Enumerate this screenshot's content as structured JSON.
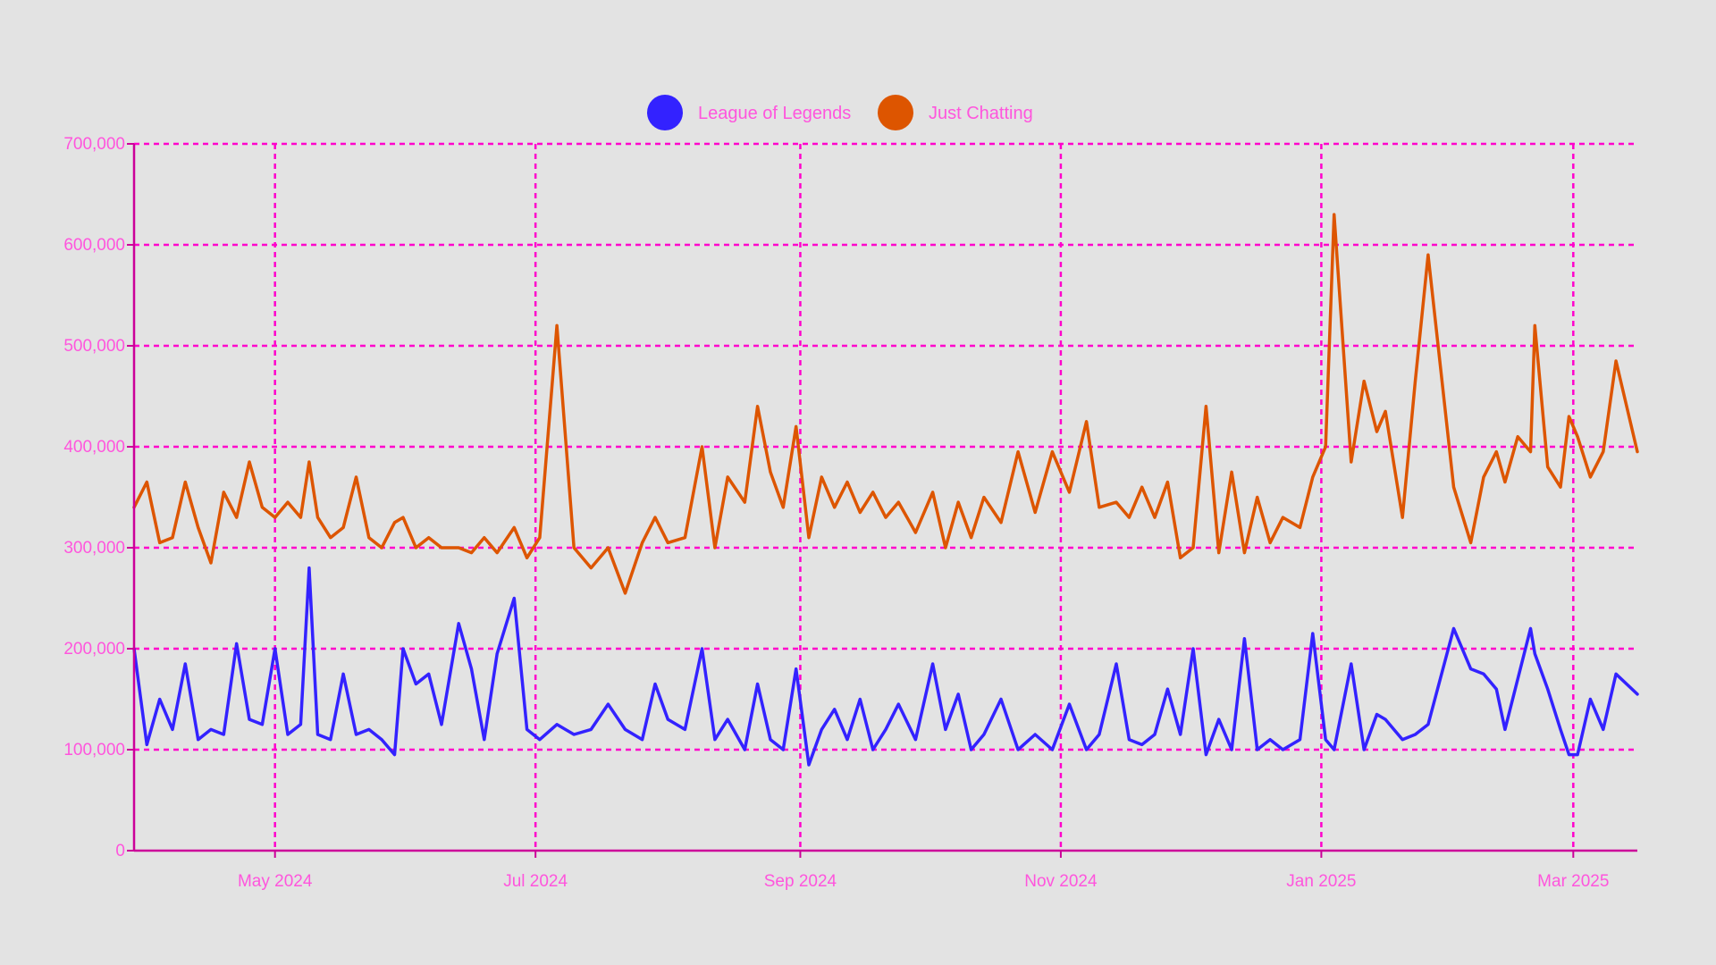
{
  "chart_data": {
    "type": "line",
    "title": "",
    "xlabel": "",
    "ylabel": "",
    "x_range": [
      "2024-03-29",
      "2025-03-16"
    ],
    "ylim": [
      0,
      700000
    ],
    "y_ticks": [
      0,
      100000,
      200000,
      300000,
      400000,
      500000,
      600000,
      700000
    ],
    "y_tick_labels": [
      "0",
      "100,000",
      "200,000",
      "300,000",
      "400,000",
      "500,000",
      "600,000",
      "700,000"
    ],
    "x_ticks": [
      "2024-05-01",
      "2024-07-01",
      "2024-09-01",
      "2024-11-01",
      "2025-01-01",
      "2025-03-01"
    ],
    "x_tick_labels": [
      "May 2024",
      "Jul 2024",
      "Sep 2024",
      "Nov 2024",
      "Jan 2025",
      "Mar 2025"
    ],
    "grid": true,
    "legend_position": "top-center",
    "colors": {
      "axis": "#cc0099",
      "grid": "#ff00cc",
      "text": "#ff55dd",
      "background": "#e3e3e3"
    },
    "series": [
      {
        "name": "League of Legends",
        "color": "#3322ff",
        "points": [
          [
            "2024-03-29",
            200000
          ],
          [
            "2024-04-01",
            105000
          ],
          [
            "2024-04-04",
            150000
          ],
          [
            "2024-04-07",
            120000
          ],
          [
            "2024-04-10",
            185000
          ],
          [
            "2024-04-13",
            110000
          ],
          [
            "2024-04-16",
            120000
          ],
          [
            "2024-04-19",
            115000
          ],
          [
            "2024-04-22",
            205000
          ],
          [
            "2024-04-25",
            130000
          ],
          [
            "2024-04-28",
            125000
          ],
          [
            "2024-05-01",
            200000
          ],
          [
            "2024-05-04",
            115000
          ],
          [
            "2024-05-07",
            125000
          ],
          [
            "2024-05-09",
            280000
          ],
          [
            "2024-05-11",
            115000
          ],
          [
            "2024-05-14",
            110000
          ],
          [
            "2024-05-17",
            175000
          ],
          [
            "2024-05-20",
            115000
          ],
          [
            "2024-05-23",
            120000
          ],
          [
            "2024-05-26",
            110000
          ],
          [
            "2024-05-29",
            95000
          ],
          [
            "2024-05-31",
            200000
          ],
          [
            "2024-06-03",
            165000
          ],
          [
            "2024-06-06",
            175000
          ],
          [
            "2024-06-09",
            125000
          ],
          [
            "2024-06-13",
            225000
          ],
          [
            "2024-06-16",
            180000
          ],
          [
            "2024-06-19",
            110000
          ],
          [
            "2024-06-22",
            195000
          ],
          [
            "2024-06-26",
            250000
          ],
          [
            "2024-06-29",
            120000
          ],
          [
            "2024-07-02",
            110000
          ],
          [
            "2024-07-06",
            125000
          ],
          [
            "2024-07-10",
            115000
          ],
          [
            "2024-07-14",
            120000
          ],
          [
            "2024-07-18",
            145000
          ],
          [
            "2024-07-22",
            120000
          ],
          [
            "2024-07-26",
            110000
          ],
          [
            "2024-07-29",
            165000
          ],
          [
            "2024-08-01",
            130000
          ],
          [
            "2024-08-05",
            120000
          ],
          [
            "2024-08-09",
            200000
          ],
          [
            "2024-08-12",
            110000
          ],
          [
            "2024-08-15",
            130000
          ],
          [
            "2024-08-19",
            100000
          ],
          [
            "2024-08-22",
            165000
          ],
          [
            "2024-08-25",
            110000
          ],
          [
            "2024-08-28",
            100000
          ],
          [
            "2024-08-31",
            180000
          ],
          [
            "2024-09-03",
            85000
          ],
          [
            "2024-09-06",
            120000
          ],
          [
            "2024-09-09",
            140000
          ],
          [
            "2024-09-12",
            110000
          ],
          [
            "2024-09-15",
            150000
          ],
          [
            "2024-09-18",
            100000
          ],
          [
            "2024-09-21",
            120000
          ],
          [
            "2024-09-24",
            145000
          ],
          [
            "2024-09-28",
            110000
          ],
          [
            "2024-10-02",
            185000
          ],
          [
            "2024-10-05",
            120000
          ],
          [
            "2024-10-08",
            155000
          ],
          [
            "2024-10-11",
            100000
          ],
          [
            "2024-10-14",
            115000
          ],
          [
            "2024-10-18",
            150000
          ],
          [
            "2024-10-22",
            100000
          ],
          [
            "2024-10-26",
            115000
          ],
          [
            "2024-10-30",
            100000
          ],
          [
            "2024-11-03",
            145000
          ],
          [
            "2024-11-07",
            100000
          ],
          [
            "2024-11-10",
            115000
          ],
          [
            "2024-11-14",
            185000
          ],
          [
            "2024-11-17",
            110000
          ],
          [
            "2024-11-20",
            105000
          ],
          [
            "2024-11-23",
            115000
          ],
          [
            "2024-11-26",
            160000
          ],
          [
            "2024-11-29",
            115000
          ],
          [
            "2024-12-02",
            200000
          ],
          [
            "2024-12-05",
            95000
          ],
          [
            "2024-12-08",
            130000
          ],
          [
            "2024-12-11",
            100000
          ],
          [
            "2024-12-14",
            210000
          ],
          [
            "2024-12-17",
            100000
          ],
          [
            "2024-12-20",
            110000
          ],
          [
            "2024-12-23",
            100000
          ],
          [
            "2024-12-27",
            110000
          ],
          [
            "2024-12-30",
            215000
          ],
          [
            "2025-01-02",
            110000
          ],
          [
            "2025-01-04",
            100000
          ],
          [
            "2025-01-08",
            185000
          ],
          [
            "2025-01-11",
            100000
          ],
          [
            "2025-01-14",
            135000
          ],
          [
            "2025-01-16",
            130000
          ],
          [
            "2025-01-20",
            110000
          ],
          [
            "2025-01-23",
            115000
          ],
          [
            "2025-01-26",
            125000
          ],
          [
            "2025-02-01",
            220000
          ],
          [
            "2025-02-05",
            180000
          ],
          [
            "2025-02-08",
            175000
          ],
          [
            "2025-02-11",
            160000
          ],
          [
            "2025-02-13",
            120000
          ],
          [
            "2025-02-16",
            170000
          ],
          [
            "2025-02-19",
            220000
          ],
          [
            "2025-02-20",
            195000
          ],
          [
            "2025-02-23",
            160000
          ],
          [
            "2025-02-26",
            120000
          ],
          [
            "2025-02-28",
            95000
          ],
          [
            "2025-03-02",
            95000
          ],
          [
            "2025-03-05",
            150000
          ],
          [
            "2025-03-08",
            120000
          ],
          [
            "2025-03-11",
            175000
          ],
          [
            "2025-03-16",
            155000
          ]
        ]
      },
      {
        "name": "Just Chatting",
        "color": "#dd5500",
        "points": [
          [
            "2024-03-29",
            340000
          ],
          [
            "2024-04-01",
            365000
          ],
          [
            "2024-04-04",
            305000
          ],
          [
            "2024-04-07",
            310000
          ],
          [
            "2024-04-10",
            365000
          ],
          [
            "2024-04-13",
            320000
          ],
          [
            "2024-04-16",
            285000
          ],
          [
            "2024-04-19",
            355000
          ],
          [
            "2024-04-22",
            330000
          ],
          [
            "2024-04-25",
            385000
          ],
          [
            "2024-04-28",
            340000
          ],
          [
            "2024-05-01",
            330000
          ],
          [
            "2024-05-04",
            345000
          ],
          [
            "2024-05-07",
            330000
          ],
          [
            "2024-05-09",
            385000
          ],
          [
            "2024-05-11",
            330000
          ],
          [
            "2024-05-14",
            310000
          ],
          [
            "2024-05-17",
            320000
          ],
          [
            "2024-05-20",
            370000
          ],
          [
            "2024-05-23",
            310000
          ],
          [
            "2024-05-26",
            300000
          ],
          [
            "2024-05-29",
            325000
          ],
          [
            "2024-05-31",
            330000
          ],
          [
            "2024-06-03",
            300000
          ],
          [
            "2024-06-06",
            310000
          ],
          [
            "2024-06-09",
            300000
          ],
          [
            "2024-06-13",
            300000
          ],
          [
            "2024-06-16",
            295000
          ],
          [
            "2024-06-19",
            310000
          ],
          [
            "2024-06-22",
            295000
          ],
          [
            "2024-06-26",
            320000
          ],
          [
            "2024-06-29",
            290000
          ],
          [
            "2024-07-02",
            310000
          ],
          [
            "2024-07-06",
            520000
          ],
          [
            "2024-07-10",
            300000
          ],
          [
            "2024-07-14",
            280000
          ],
          [
            "2024-07-18",
            300000
          ],
          [
            "2024-07-22",
            255000
          ],
          [
            "2024-07-26",
            305000
          ],
          [
            "2024-07-29",
            330000
          ],
          [
            "2024-08-01",
            305000
          ],
          [
            "2024-08-05",
            310000
          ],
          [
            "2024-08-09",
            400000
          ],
          [
            "2024-08-12",
            300000
          ],
          [
            "2024-08-15",
            370000
          ],
          [
            "2024-08-19",
            345000
          ],
          [
            "2024-08-22",
            440000
          ],
          [
            "2024-08-25",
            375000
          ],
          [
            "2024-08-28",
            340000
          ],
          [
            "2024-08-31",
            420000
          ],
          [
            "2024-09-03",
            310000
          ],
          [
            "2024-09-06",
            370000
          ],
          [
            "2024-09-09",
            340000
          ],
          [
            "2024-09-12",
            365000
          ],
          [
            "2024-09-15",
            335000
          ],
          [
            "2024-09-18",
            355000
          ],
          [
            "2024-09-21",
            330000
          ],
          [
            "2024-09-24",
            345000
          ],
          [
            "2024-09-28",
            315000
          ],
          [
            "2024-10-02",
            355000
          ],
          [
            "2024-10-05",
            300000
          ],
          [
            "2024-10-08",
            345000
          ],
          [
            "2024-10-11",
            310000
          ],
          [
            "2024-10-14",
            350000
          ],
          [
            "2024-10-18",
            325000
          ],
          [
            "2024-10-22",
            395000
          ],
          [
            "2024-10-26",
            335000
          ],
          [
            "2024-10-30",
            395000
          ],
          [
            "2024-11-03",
            355000
          ],
          [
            "2024-11-07",
            425000
          ],
          [
            "2024-11-10",
            340000
          ],
          [
            "2024-11-14",
            345000
          ],
          [
            "2024-11-17",
            330000
          ],
          [
            "2024-11-20",
            360000
          ],
          [
            "2024-11-23",
            330000
          ],
          [
            "2024-11-26",
            365000
          ],
          [
            "2024-11-29",
            290000
          ],
          [
            "2024-12-02",
            300000
          ],
          [
            "2024-12-05",
            440000
          ],
          [
            "2024-12-08",
            295000
          ],
          [
            "2024-12-11",
            375000
          ],
          [
            "2024-12-14",
            295000
          ],
          [
            "2024-12-17",
            350000
          ],
          [
            "2024-12-20",
            305000
          ],
          [
            "2024-12-23",
            330000
          ],
          [
            "2024-12-27",
            320000
          ],
          [
            "2024-12-30",
            370000
          ],
          [
            "2025-01-02",
            400000
          ],
          [
            "2025-01-04",
            630000
          ],
          [
            "2025-01-08",
            385000
          ],
          [
            "2025-01-11",
            465000
          ],
          [
            "2025-01-14",
            415000
          ],
          [
            "2025-01-16",
            435000
          ],
          [
            "2025-01-20",
            330000
          ],
          [
            "2025-01-23",
            465000
          ],
          [
            "2025-01-26",
            590000
          ],
          [
            "2025-02-01",
            360000
          ],
          [
            "2025-02-05",
            305000
          ],
          [
            "2025-02-08",
            370000
          ],
          [
            "2025-02-11",
            395000
          ],
          [
            "2025-02-13",
            365000
          ],
          [
            "2025-02-16",
            410000
          ],
          [
            "2025-02-19",
            395000
          ],
          [
            "2025-02-20",
            520000
          ],
          [
            "2025-02-23",
            380000
          ],
          [
            "2025-02-26",
            360000
          ],
          [
            "2025-02-28",
            430000
          ],
          [
            "2025-03-02",
            410000
          ],
          [
            "2025-03-05",
            370000
          ],
          [
            "2025-03-08",
            395000
          ],
          [
            "2025-03-11",
            485000
          ],
          [
            "2025-03-16",
            395000
          ]
        ]
      }
    ]
  }
}
